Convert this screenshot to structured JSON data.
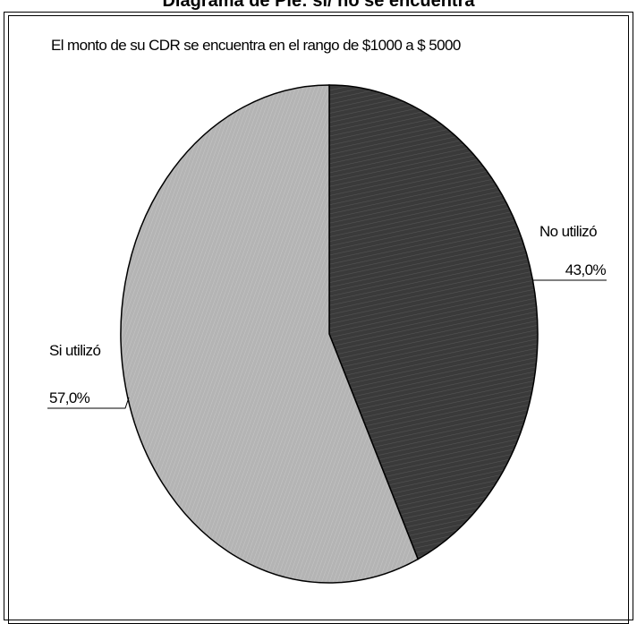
{
  "chart_data": {
    "type": "pie",
    "title": "Diagrama de Pie:  si/ no se encuentra",
    "subtitle": "El monto de su CDR se encuentra en el rango de $1000 a $ 5000",
    "categories": [
      "No utilizó",
      "Si utilizó"
    ],
    "values": [
      43.0,
      57.0
    ],
    "value_labels": [
      "43,0%",
      "57,0%"
    ],
    "colors": [
      "#3a3a3a",
      "#b4b4b4"
    ],
    "legend": "none"
  }
}
